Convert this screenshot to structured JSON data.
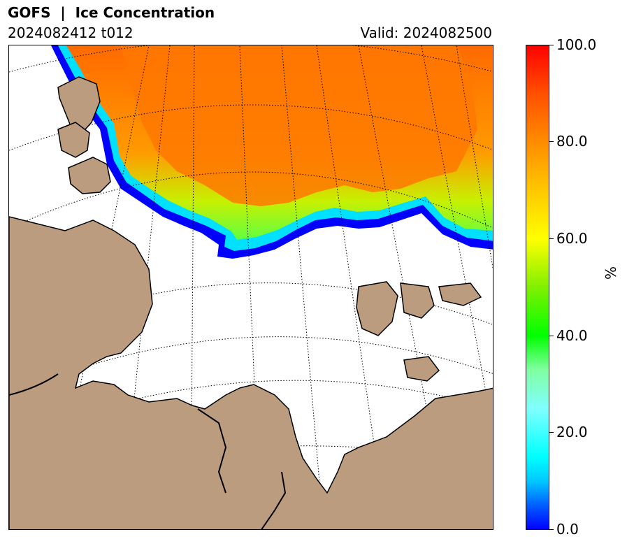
{
  "header": {
    "title": "GOFS  |  Ice Concentration",
    "run": "2024082412 t012",
    "valid": "Valid: 2024082500"
  },
  "colorbar": {
    "unit": "%",
    "ticks": [
      "100.0",
      "80.0",
      "60.0",
      "40.0",
      "20.0",
      "0.0"
    ],
    "min": 0,
    "max": 100,
    "colors": [
      "#0000ff",
      "#00ffff",
      "#00ff00",
      "#ffff00",
      "#ff8c00",
      "#ff0000"
    ]
  },
  "map": {
    "land_color": "#bc9c7e",
    "ocean_color": "#ffffff",
    "ice_high_color": "#ff6a00",
    "ice_mid_color": "#b0f000",
    "ice_edge_color": "#0000ff"
  }
}
